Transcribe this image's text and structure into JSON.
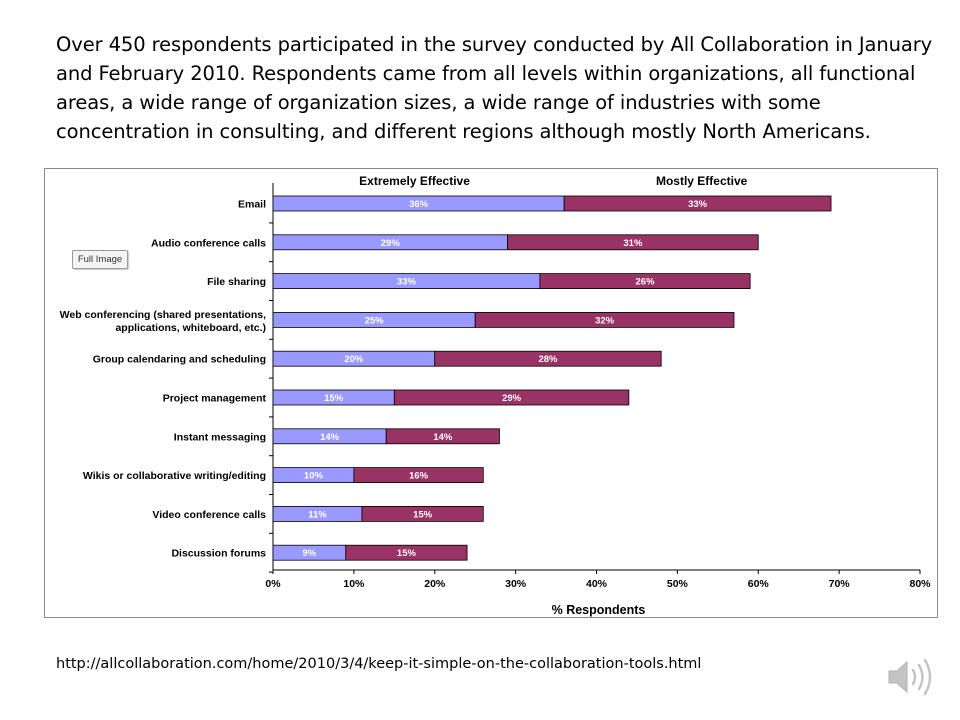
{
  "intro_text": "Over 450 respondents participated in the survey conducted by All Collaboration in January and February 2010. Respondents came from all levels within organizations, all functional areas, a wide range of organization sizes, a wide range of industries with some concentration in consulting, and different regions although mostly North Americans.",
  "full_image_label": "Full Image",
  "source_url": "http://allcollaboration.com/home/2010/3/4/keep-it-simple-on-the-collaboration-tools.html",
  "speaker_icon": "speaker-icon",
  "chart_data": {
    "type": "bar",
    "orientation": "horizontal",
    "stacked": true,
    "categories": [
      [
        "Email"
      ],
      [
        "Audio conference calls"
      ],
      [
        "File sharing"
      ],
      [
        "Web conferencing (shared presentations,",
        "applications, whiteboard, etc.)"
      ],
      [
        "Group calendaring and scheduling"
      ],
      [
        "Project management"
      ],
      [
        "Instant messaging"
      ],
      [
        "Wikis or collaborative writing/editing"
      ],
      [
        "Video conference calls"
      ],
      [
        "Discussion forums"
      ]
    ],
    "series": [
      {
        "name": "Extremely Effective",
        "color": "#9999ff",
        "values": [
          36,
          29,
          33,
          25,
          20,
          15,
          14,
          10,
          11,
          9
        ],
        "labels": [
          "36%",
          "29%",
          "33%",
          "25%",
          "20%",
          "15%",
          "14%",
          "10%",
          "11%",
          "9%"
        ]
      },
      {
        "name": "Mostly Effective",
        "color": "#993366",
        "values": [
          33,
          31,
          26,
          32,
          28,
          29,
          14,
          16,
          15,
          15
        ],
        "labels": [
          "33%",
          "31%",
          "26%",
          "32%",
          "28%",
          "29%",
          "14%",
          "16%",
          "15%",
          "15%"
        ]
      }
    ],
    "xlim": [
      0,
      80
    ],
    "xticks": [
      0,
      10,
      20,
      30,
      40,
      50,
      60,
      70,
      80
    ],
    "xtick_labels": [
      "0%",
      "10%",
      "20%",
      "30%",
      "40%",
      "50%",
      "60%",
      "70%",
      "80%"
    ],
    "xlabel": "% Respondents",
    "legend_position": "top"
  }
}
